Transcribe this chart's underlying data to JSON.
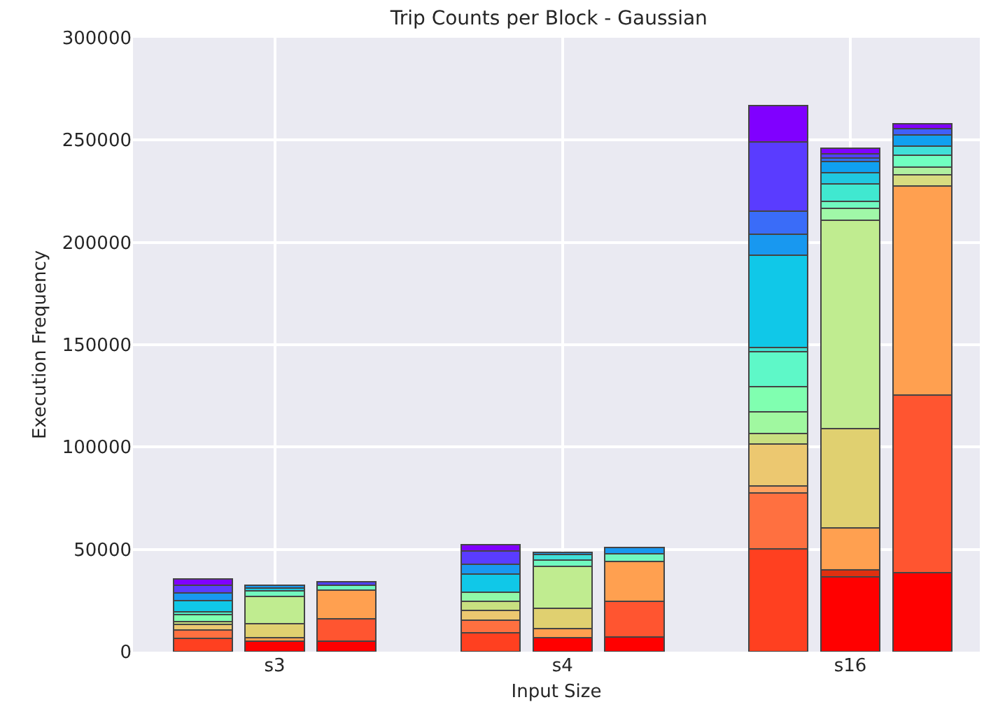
{
  "chart_data": {
    "type": "bar",
    "title": "Trip Counts per Block - Gaussian",
    "xlabel": "Input Size",
    "ylabel": "Execution Frequency",
    "categories": [
      null,
      "s3",
      null,
      null,
      null,
      "s4",
      null,
      null,
      null,
      "s16",
      null
    ],
    "stacked": true,
    "ylim": [
      0,
      300000
    ],
    "yticks": [
      0,
      50000,
      100000,
      150000,
      200000,
      250000,
      300000
    ],
    "grid": true,
    "series": [
      {
        "values": [
          6400,
          5000,
          5000,
          null,
          9100,
          6800,
          7300,
          null,
          50100,
          36400,
          38700
        ],
        "colors": [
          "#ff4020",
          "#ff0000",
          "#ff0000",
          null,
          "#ff4020",
          "#ff0000",
          "#ff0000",
          null,
          "#ff4020",
          "#ff0000",
          "#ff0000"
        ]
      },
      {
        "values": [
          4100,
          1800,
          10900,
          null,
          6400,
          4600,
          17300,
          null,
          27300,
          3700,
          86600
        ],
        "colors": [
          "#ff7040",
          "#ffa050",
          "#ff5530",
          null,
          "#ff7040",
          "#ffa050",
          "#ff5530",
          null,
          "#ff7040",
          "#e03010",
          "#ff5530"
        ]
      },
      {
        "values": [
          2700,
          6900,
          14200,
          null,
          4500,
          9800,
          19600,
          null,
          3700,
          20500,
          102100
        ],
        "colors": [
          "#ecc870",
          "#e0d070",
          "#ffa050",
          null,
          "#ecc870",
          "#e0d070",
          "#ffa050",
          null,
          "#ffa060",
          "#ffa050",
          "#ffa050"
        ]
      },
      {
        "values": [
          1400,
          13200,
          2200,
          null,
          4600,
          20500,
          3600,
          null,
          20500,
          48300,
          5600
        ],
        "colors": [
          "#c8e080",
          "#c0ec90",
          "#70f8c0",
          null,
          "#c8e080",
          "#c0ec90",
          "#70f8c0",
          null,
          "#ecc870",
          "#e0d070",
          "#d8dc80"
        ]
      },
      {
        "values": [
          3600,
          2700,
          1900,
          null,
          4600,
          2900,
          3200,
          null,
          5000,
          101800,
          3900
        ],
        "colors": [
          "#80ffb0",
          "#70f8c0",
          "#5040ff",
          null,
          "#90f8a8",
          "#70f8c0",
          "#1898f0",
          null,
          "#c8e080",
          "#c0ec90",
          "#b0f0a0"
        ]
      },
      {
        "values": [
          1400,
          1400,
          null,
          null,
          8600,
          2800,
          null,
          null,
          10500,
          5900,
          5700
        ],
        "colors": [
          "#50f0c8",
          "#20c8e0",
          null,
          null,
          "#10c8e8",
          "#40e0d8",
          null,
          null,
          "#a0f8a0",
          "#a0f8a8",
          "#70ffc0"
        ]
      },
      {
        "values": [
          5500,
          1300,
          null,
          null,
          5000,
          1100,
          null,
          null,
          12300,
          3500,
          4600
        ],
        "colors": [
          "#10c8e8",
          "#1898f0",
          null,
          null,
          "#1898f0",
          "#1898f0",
          null,
          null,
          "#80ffb0",
          "#70f8c0",
          "#40e0d8"
        ]
      },
      {
        "values": [
          3600,
          null,
          null,
          null,
          6400,
          null,
          null,
          null,
          17100,
          8400,
          5200
        ],
        "colors": [
          "#1898f0",
          null,
          null,
          null,
          "#5a3cff",
          null,
          null,
          null,
          "#5ef8c8",
          "#40e8d0",
          "#10a0f0"
        ]
      },
      {
        "values": [
          3600,
          null,
          null,
          null,
          3200,
          null,
          null,
          null,
          2300,
          5700,
          3200
        ],
        "colors": [
          "#5a3cff",
          null,
          null,
          null,
          "#8000ff",
          null,
          null,
          null,
          "#40e0d0",
          "#20c8e0",
          "#4060f8"
        ]
      },
      {
        "values": [
          3200,
          null,
          null,
          null,
          null,
          null,
          null,
          null,
          44800,
          5200,
          2400
        ],
        "colors": [
          "#8000ff",
          null,
          null,
          null,
          null,
          null,
          null,
          null,
          "#10c8e8",
          "#10a0f0",
          "#8000ff"
        ]
      },
      {
        "values": [
          null,
          null,
          null,
          null,
          null,
          null,
          null,
          null,
          10500,
          2000,
          null
        ],
        "colors": [
          null,
          null,
          null,
          null,
          null,
          null,
          null,
          null,
          "#1898f0",
          "#3070f8",
          null
        ]
      },
      {
        "values": [
          null,
          null,
          null,
          null,
          null,
          null,
          null,
          null,
          11200,
          1900,
          null
        ],
        "colors": [
          null,
          null,
          null,
          null,
          null,
          null,
          null,
          null,
          "#3a6cf8",
          "#5040ff",
          null
        ]
      },
      {
        "values": [
          null,
          null,
          null,
          null,
          null,
          null,
          null,
          null,
          33700,
          2700,
          null
        ],
        "colors": [
          null,
          null,
          null,
          null,
          null,
          null,
          null,
          null,
          "#5a3cff",
          "#8000ff",
          null
        ]
      },
      {
        "values": [
          null,
          null,
          null,
          null,
          null,
          null,
          null,
          null,
          17700,
          null,
          null
        ],
        "colors": [
          null,
          null,
          null,
          null,
          null,
          null,
          null,
          null,
          "#8000ff",
          null,
          null
        ]
      }
    ]
  }
}
